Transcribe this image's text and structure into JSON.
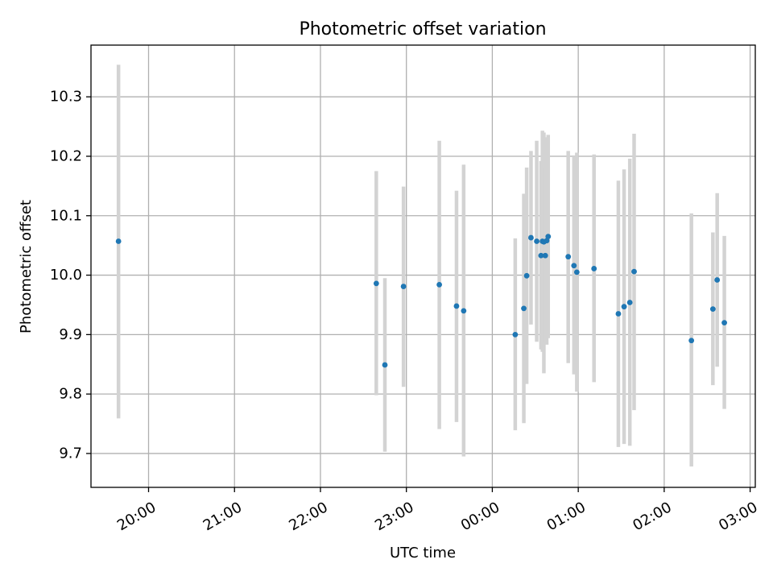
{
  "chart_data": {
    "type": "scatter",
    "title": "Photometric offset variation",
    "xlabel": "UTC time",
    "ylabel": "Photometric offset",
    "grid": true,
    "x_tick_labels": [
      "20:00",
      "21:00",
      "22:00",
      "23:00",
      "00:00",
      "01:00",
      "02:00",
      "03:00"
    ],
    "y_tick_labels": [
      "9.7",
      "9.8",
      "9.9",
      "10.0",
      "10.1",
      "10.2",
      "10.3"
    ],
    "x_tick_values_hours": [
      20,
      21,
      22,
      23,
      24,
      25,
      26,
      27
    ],
    "y_tick_values": [
      9.7,
      9.8,
      9.9,
      10.0,
      10.1,
      10.2,
      10.3
    ],
    "xlim_hours": [
      19.33,
      27.06
    ],
    "ylim": [
      9.643,
      10.387
    ],
    "colors": {
      "point": "#1f77b4",
      "errorbar": "#d3d3d3",
      "grid": "#b0b0b0"
    },
    "points": [
      {
        "t": "19:39",
        "y": 10.057,
        "ylo": 9.759,
        "yhi": 10.354
      },
      {
        "t": "22:39",
        "y": 9.986,
        "ylo": 9.798,
        "yhi": 10.175
      },
      {
        "t": "22:45",
        "y": 9.849,
        "ylo": 9.703,
        "yhi": 9.995
      },
      {
        "t": "22:58",
        "y": 9.981,
        "ylo": 9.812,
        "yhi": 10.149
      },
      {
        "t": "23:23",
        "y": 9.984,
        "ylo": 9.741,
        "yhi": 10.226
      },
      {
        "t": "23:35",
        "y": 9.948,
        "ylo": 9.753,
        "yhi": 10.142
      },
      {
        "t": "23:40",
        "y": 9.94,
        "ylo": 9.695,
        "yhi": 10.186
      },
      {
        "t": "00:16",
        "y": 9.9,
        "ylo": 9.739,
        "yhi": 10.062
      },
      {
        "t": "00:22",
        "y": 9.944,
        "ylo": 9.751,
        "yhi": 10.137
      },
      {
        "t": "00:24",
        "y": 9.999,
        "ylo": 9.817,
        "yhi": 10.181
      },
      {
        "t": "00:27",
        "y": 10.063,
        "ylo": 9.917,
        "yhi": 10.209
      },
      {
        "t": "00:31",
        "y": 10.057,
        "ylo": 9.888,
        "yhi": 10.226
      },
      {
        "t": "00:34",
        "y": 10.033,
        "ylo": 9.875,
        "yhi": 10.192
      },
      {
        "t": "00:35",
        "y": 10.057,
        "ylo": 9.871,
        "yhi": 10.243
      },
      {
        "t": "00:36",
        "y": 10.056,
        "ylo": 9.835,
        "yhi": 10.24
      },
      {
        "t": "00:37",
        "y": 10.033,
        "ylo": 9.886,
        "yhi": 10.18
      },
      {
        "t": "00:38",
        "y": 10.058,
        "ylo": 9.883,
        "yhi": 10.232
      },
      {
        "t": "00:39",
        "y": 10.065,
        "ylo": 9.894,
        "yhi": 10.236
      },
      {
        "t": "00:53",
        "y": 10.031,
        "ylo": 9.852,
        "yhi": 10.209
      },
      {
        "t": "00:57",
        "y": 10.016,
        "ylo": 9.833,
        "yhi": 10.2
      },
      {
        "t": "00:59",
        "y": 10.005,
        "ylo": 9.804,
        "yhi": 10.206
      },
      {
        "t": "01:11",
        "y": 10.011,
        "ylo": 9.82,
        "yhi": 10.203
      },
      {
        "t": "01:28",
        "y": 9.935,
        "ylo": 9.711,
        "yhi": 10.159
      },
      {
        "t": "01:32",
        "y": 9.947,
        "ylo": 9.716,
        "yhi": 10.178
      },
      {
        "t": "01:36",
        "y": 9.954,
        "ylo": 9.713,
        "yhi": 10.196
      },
      {
        "t": "01:39",
        "y": 10.006,
        "ylo": 9.773,
        "yhi": 10.238
      },
      {
        "t": "02:19",
        "y": 9.89,
        "ylo": 9.678,
        "yhi": 10.104
      },
      {
        "t": "02:34",
        "y": 9.943,
        "ylo": 9.815,
        "yhi": 10.072
      },
      {
        "t": "02:37",
        "y": 9.992,
        "ylo": 9.846,
        "yhi": 10.138
      },
      {
        "t": "02:42",
        "y": 9.92,
        "ylo": 9.775,
        "yhi": 10.066
      }
    ]
  }
}
